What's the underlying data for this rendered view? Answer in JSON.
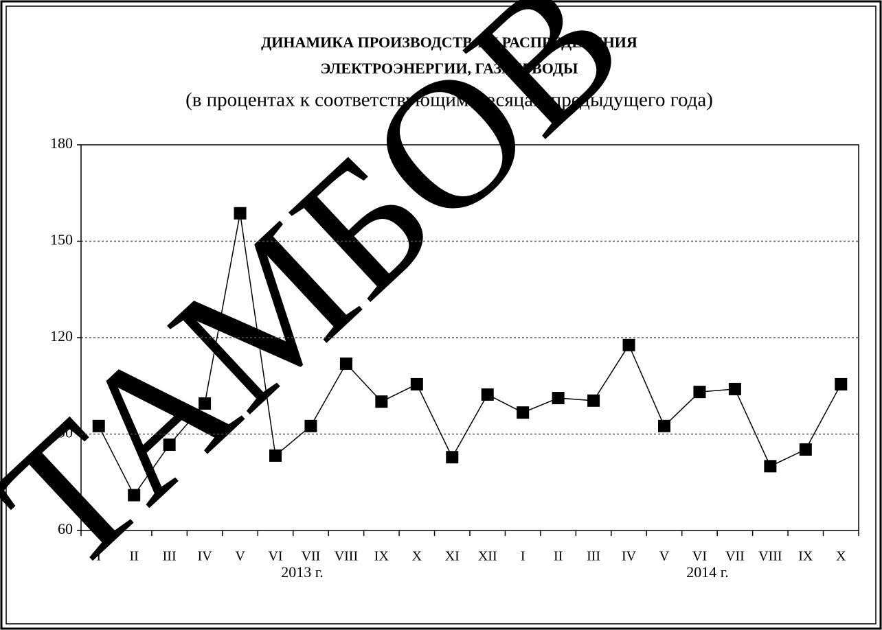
{
  "chart_data": {
    "type": "line",
    "title": "ДИНАМИКА ПРОИЗВОДСТВА И РАСПРЕДЕЛЕНИЯ",
    "title_line2": "ЭЛЕКТРОЭНЕРГИИ, ГАЗА И ВОДЫ",
    "subtitle": "(в процентах к соответствующим месяцам предыдущего года)",
    "watermark": "ТАМБОВ",
    "categories": [
      "I",
      "II",
      "III",
      "IV",
      "V",
      "VI",
      "VII",
      "VIII",
      "IX",
      "X",
      "XI",
      "XII",
      "I",
      "II",
      "III",
      "IV",
      "V",
      "VI",
      "VII",
      "VIII",
      "IX",
      "X"
    ],
    "category_groups": [
      "2013 г.",
      "2014 г."
    ],
    "series": [
      {
        "color": "#000000",
        "values": [
          92.5,
          71,
          86.7,
          99.5,
          158.7,
          83.3,
          92.5,
          111.9,
          100.1,
          105.5,
          82.8,
          102.3,
          96.7,
          101.2,
          100.4,
          117.7,
          92.5,
          103.1,
          104,
          80,
          85.2,
          105.5
        ]
      }
    ],
    "ylim": [
      60,
      180
    ],
    "yticks": [
      60,
      90,
      120,
      150,
      180
    ],
    "grid": true
  }
}
